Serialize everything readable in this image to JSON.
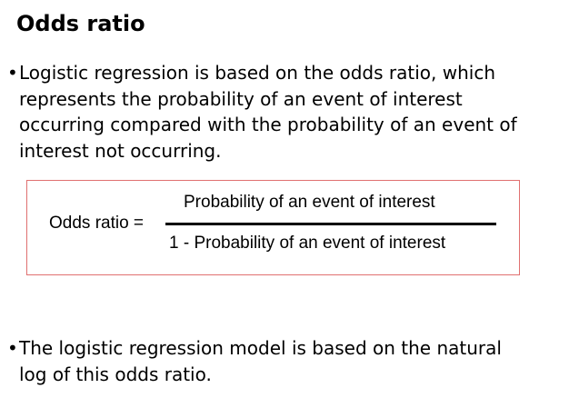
{
  "slide": {
    "title": "Odds ratio",
    "bullets": [
      {
        "marker": "•",
        "lines": [
          "Logistic regression is based on the odds ratio, which",
          "represents the probability of an event of interest",
          "occurring compared with the probability of an event of",
          "interest not occurring."
        ]
      },
      {
        "marker": "•",
        "lines": [
          "The logistic regression model is based on the natural",
          "log of this odds ratio."
        ]
      }
    ],
    "formula": {
      "lhs": "Odds ratio =",
      "numerator": "Probability of an event of interest",
      "denominator": "1 - Probability of an event of interest",
      "border_color": "#e07070"
    }
  }
}
